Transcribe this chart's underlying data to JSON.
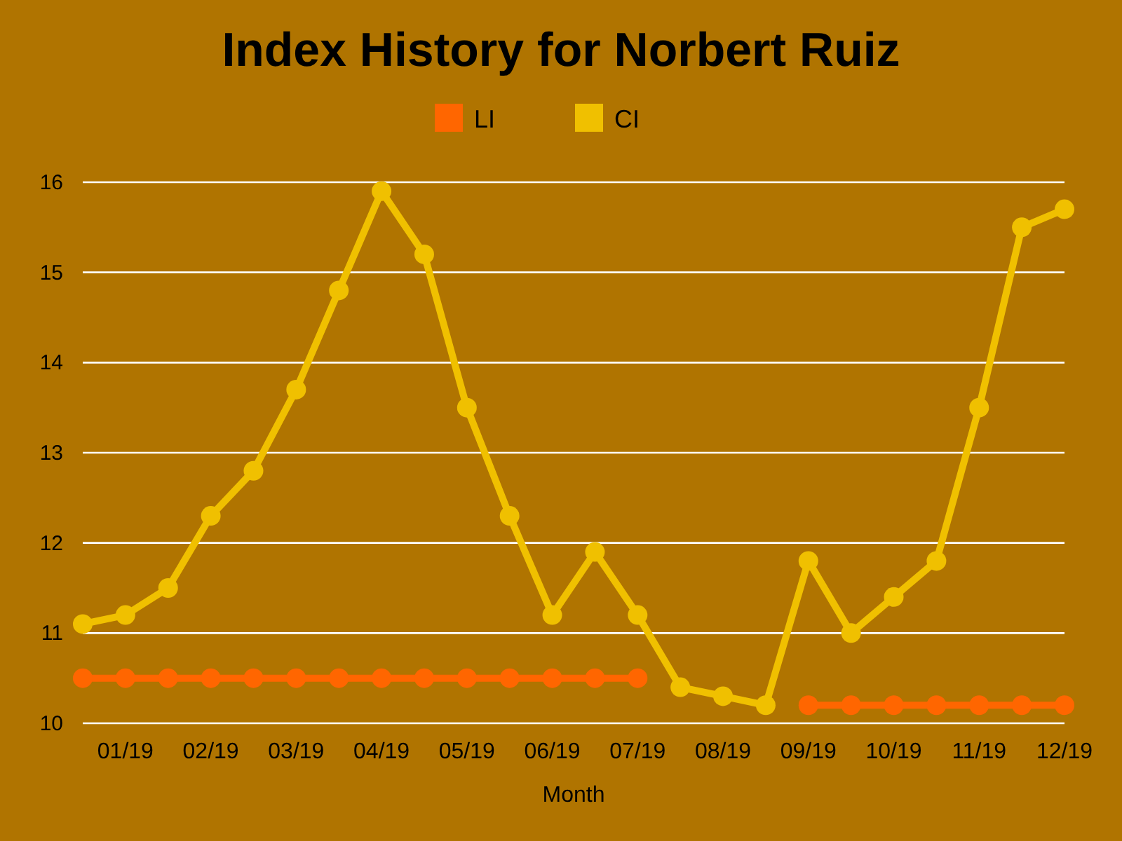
{
  "chart_data": {
    "type": "line",
    "title": "Index History for Norbert Ruiz",
    "xlabel": "Month",
    "categories": [
      null,
      "01/19",
      null,
      "02/19",
      null,
      "03/19",
      null,
      "04/19",
      null,
      "05/19",
      null,
      "06/19",
      null,
      "07/19",
      null,
      "08/19",
      null,
      "09/19",
      null,
      "10/19",
      null,
      "11/19",
      null,
      "12/19"
    ],
    "series": [
      {
        "name": "LI",
        "color": "#ff6600",
        "values": [
          10.5,
          10.5,
          10.5,
          10.5,
          10.5,
          10.5,
          10.5,
          10.5,
          10.5,
          10.5,
          10.5,
          10.5,
          10.5,
          10.5,
          null,
          null,
          null,
          10.2,
          10.2,
          10.2,
          10.2,
          10.2,
          10.2,
          10.2
        ]
      },
      {
        "name": "CI",
        "color": "#f0c000",
        "values": [
          11.1,
          11.2,
          11.5,
          12.3,
          12.8,
          13.7,
          14.8,
          15.9,
          15.2,
          13.5,
          12.3,
          11.2,
          11.9,
          11.2,
          10.4,
          10.3,
          10.2,
          11.8,
          11.0,
          11.4,
          11.8,
          13.5,
          15.5,
          15.7
        ]
      }
    ],
    "ylim": [
      10,
      16
    ],
    "yticks": [
      10,
      11,
      12,
      13,
      14,
      15,
      16
    ],
    "grid": "y",
    "legend": "top",
    "marker": "circle",
    "line_style": "solid"
  }
}
